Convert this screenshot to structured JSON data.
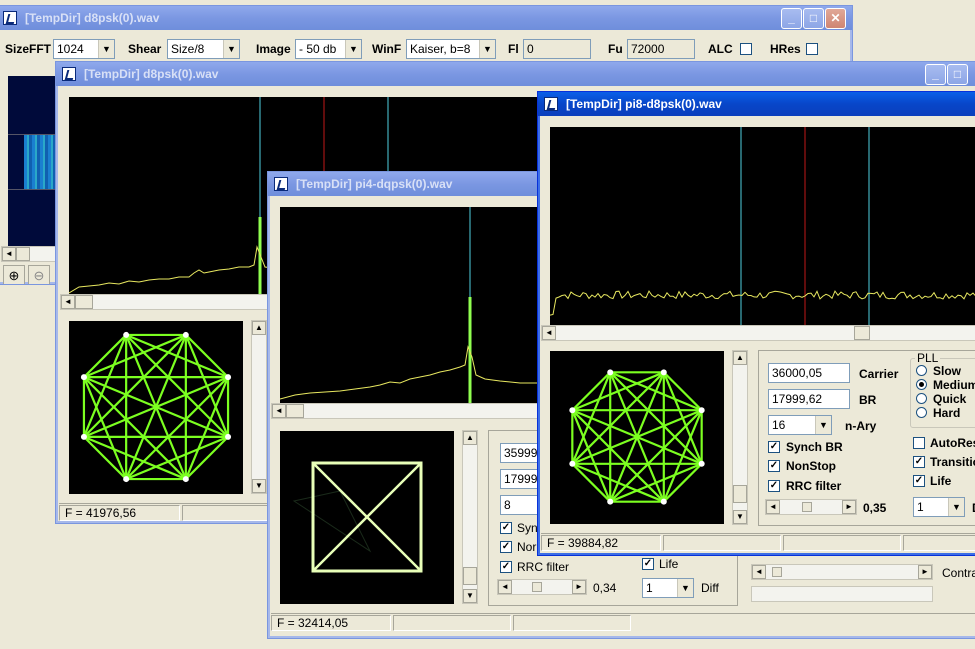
{
  "colors": {
    "trace": "#e8e860",
    "cyan_marker": "#4fd0e0",
    "red_marker": "#c01818",
    "green_peak": "#90ff50",
    "constellation": "#7cff20",
    "square": "#e8ffb8"
  },
  "win1": {
    "title": "[TempDir] d8psk(0).wav",
    "sizefft_label": "SizeFFT",
    "sizefft_value": "1024",
    "shear_label": "Shear",
    "shear_value": "Size/8",
    "image_label": "Image",
    "image_value": "- 50 db",
    "winf_label": "WinF",
    "winf_value": "Kaiser, b=8",
    "fl_label": "Fl",
    "fl_value": "0",
    "fu_label": "Fu",
    "fu_value": "72000",
    "alc_label": "ALC",
    "hres_label": "HRes",
    "zoom_in_glyph": "⊕",
    "zoom_out_glyph": "⊖"
  },
  "win2": {
    "title": "[TempDir] d8psk(0).wav",
    "status_freq": "F = 41976,56"
  },
  "win3": {
    "title": "[TempDir] pi4-dqpsk(0).wav",
    "carrier_value": "35999",
    "br_value": "17999",
    "nary_value": "8",
    "synch_label": "Syn",
    "nonstop_label": "Nor",
    "rrc_label": "RRC filter",
    "rolloff_value": "0,34",
    "life_label": "Life",
    "diff_value": "1",
    "diff_label": "Diff",
    "contrast_label": "Contra",
    "status_freq": "F = 32414,05"
  },
  "win4": {
    "title": "[TempDir] pi8-d8psk(0).wav",
    "carrier_value": "36000,05",
    "carrier_label": "Carrier",
    "br_value": "17999,62",
    "br_label": "BR",
    "nary_value": "16",
    "nary_label": "n-Ary",
    "synch_label": "Synch BR",
    "nonstop_label": "NonStop",
    "rrc_label": "RRC filter",
    "rolloff_value": "0,35",
    "pll_title": "PLL",
    "pll_options": [
      "Slow",
      "Medium",
      "Quick",
      "Hard"
    ],
    "autoreset_label": "AutoRes",
    "transition_label": "Transitio",
    "life_label": "Life",
    "diff_value": "1",
    "diff_label": "D",
    "status_freq": "F = 39884,82"
  }
}
